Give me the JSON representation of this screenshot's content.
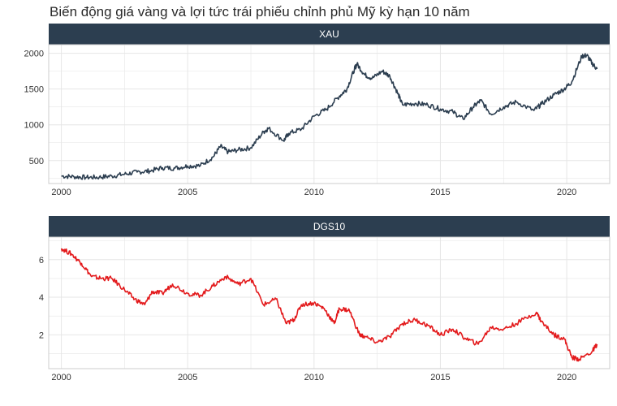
{
  "title": "Biến động giá vàng và lợi tức trái phiếu chỉnh phủ Mỹ kỳ hạn 10 năm",
  "colors": {
    "strip": "#2c3e50",
    "xau": "#2c3e50",
    "dgs10": "#e31a1c",
    "grid": "#e6e6e6",
    "border": "#cccccc"
  },
  "chart_data": [
    {
      "type": "line",
      "panel": "XAU",
      "x_ticks": [
        "2000",
        "2005",
        "2010",
        "2015",
        "2020"
      ],
      "y_ticks": [
        "500",
        "1000",
        "1500",
        "2000"
      ],
      "xlim": [
        1999.5,
        2021.7
      ],
      "ylim": [
        180,
        2120
      ],
      "grid": true,
      "series": [
        {
          "x": [
            2000.0,
            2000.5,
            2001.0,
            2001.5,
            2002.0,
            2002.5,
            2003.0,
            2003.5,
            2004.0,
            2004.5,
            2005.0,
            2005.5,
            2006.0,
            2006.3,
            2006.6,
            2007.0,
            2007.5,
            2008.0,
            2008.2,
            2008.8,
            2009.0,
            2009.5,
            2010.0,
            2010.5,
            2011.0,
            2011.3,
            2011.6,
            2011.7,
            2012.0,
            2012.3,
            2012.7,
            2013.0,
            2013.3,
            2013.5,
            2014.0,
            2014.5,
            2015.0,
            2015.5,
            2015.9,
            2016.3,
            2016.6,
            2017.0,
            2017.5,
            2018.0,
            2018.7,
            2019.0,
            2019.5,
            2019.9,
            2020.2,
            2020.6,
            2020.8,
            2021.0,
            2021.2
          ],
          "values": [
            285,
            275,
            265,
            268,
            285,
            310,
            340,
            355,
            400,
            395,
            425,
            430,
            550,
            700,
            620,
            650,
            680,
            900,
            950,
            780,
            880,
            940,
            1120,
            1220,
            1400,
            1500,
            1780,
            1850,
            1700,
            1650,
            1750,
            1680,
            1450,
            1280,
            1300,
            1280,
            1220,
            1180,
            1080,
            1250,
            1340,
            1150,
            1250,
            1320,
            1200,
            1290,
            1420,
            1500,
            1600,
            1960,
            1970,
            1860,
            1780
          ]
        }
      ]
    },
    {
      "type": "line",
      "panel": "DGS10",
      "x_ticks": [
        "2000",
        "2005",
        "2010",
        "2015",
        "2020"
      ],
      "y_ticks": [
        "2",
        "4",
        "6"
      ],
      "xlim": [
        1999.5,
        2021.7
      ],
      "ylim": [
        0.2,
        7.2
      ],
      "grid": true,
      "series": [
        {
          "x": [
            2000.0,
            2000.4,
            2000.8,
            2001.2,
            2001.6,
            2002.0,
            2002.5,
            2002.9,
            2003.3,
            2003.6,
            2004.0,
            2004.4,
            2005.0,
            2005.5,
            2006.0,
            2006.5,
            2007.0,
            2007.5,
            2008.0,
            2008.5,
            2008.9,
            2009.2,
            2009.5,
            2010.0,
            2010.4,
            2010.8,
            2011.0,
            2011.4,
            2011.8,
            2012.0,
            2012.5,
            2013.0,
            2013.5,
            2014.0,
            2014.5,
            2015.0,
            2015.5,
            2016.0,
            2016.5,
            2017.0,
            2017.5,
            2018.0,
            2018.8,
            2019.0,
            2019.5,
            2019.9,
            2020.2,
            2020.5,
            2021.0,
            2021.2
          ],
          "values": [
            6.6,
            6.3,
            5.8,
            5.1,
            5.0,
            5.0,
            4.4,
            3.9,
            3.6,
            4.3,
            4.2,
            4.7,
            4.2,
            4.1,
            4.6,
            5.1,
            4.7,
            5.0,
            3.6,
            3.9,
            2.6,
            2.8,
            3.6,
            3.7,
            3.4,
            2.6,
            3.4,
            3.3,
            2.0,
            1.9,
            1.6,
            1.9,
            2.6,
            2.8,
            2.5,
            2.0,
            2.3,
            1.8,
            1.5,
            2.4,
            2.3,
            2.6,
            3.2,
            2.7,
            2.0,
            1.8,
            0.8,
            0.7,
            1.1,
            1.5
          ]
        }
      ]
    }
  ]
}
